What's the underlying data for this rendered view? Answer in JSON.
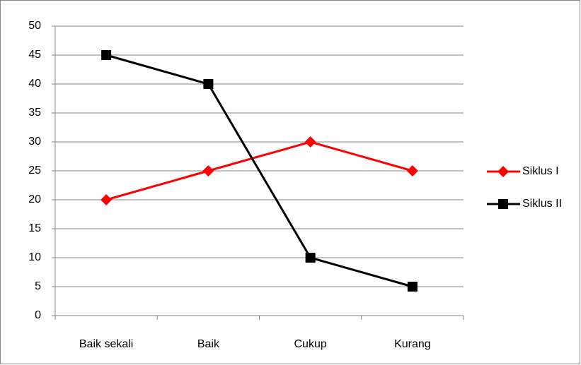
{
  "chart_data": {
    "type": "line",
    "categories": [
      "Baik sekali",
      "Baik",
      "Cukup",
      "Kurang"
    ],
    "series": [
      {
        "name": "Siklus I",
        "color": "#ff0000",
        "marker": "diamond",
        "values": [
          20,
          25,
          30,
          25
        ]
      },
      {
        "name": "Siklus II",
        "color": "#000000",
        "marker": "square",
        "values": [
          45,
          40,
          10,
          5
        ]
      }
    ],
    "ylim": [
      0,
      50
    ],
    "yticks": [
      0,
      5,
      10,
      15,
      20,
      25,
      30,
      35,
      40,
      45,
      50
    ],
    "grid": true,
    "legend": "right"
  }
}
